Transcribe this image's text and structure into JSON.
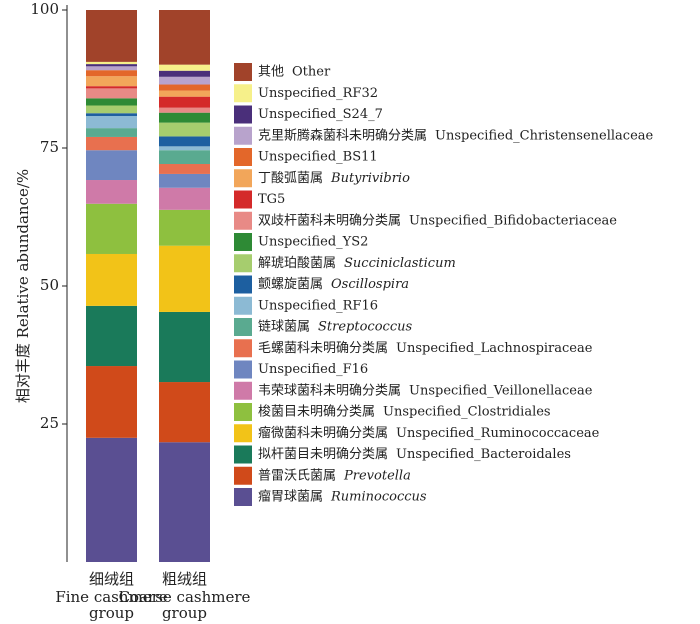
{
  "chart_data": {
    "type": "stacked_bar",
    "y_label": "相对丰度 Relative abundance/%",
    "categories": [
      "细绒组",
      "粗绒组"
    ],
    "category_en": [
      [
        "Fine cashmere",
        "group"
      ],
      [
        "Coarse cashmere",
        "group"
      ]
    ],
    "ylim": [
      0,
      100
    ],
    "yticks": [
      25,
      50,
      75,
      100
    ],
    "series": [
      {
        "name": "瘤胃球菌属",
        "name_en": "Ruminococcus",
        "italic": true,
        "color": "#5a4f92",
        "values": [
          22.5,
          21.7
        ]
      },
      {
        "name": "普雷沃氏菌属",
        "name_en": "Prevotella",
        "italic": true,
        "color": "#d04a1a",
        "values": [
          13.0,
          10.9
        ]
      },
      {
        "name": "拟杆菌目未明确分类属",
        "name_en": "Unspecified_Bacteroidales",
        "italic": false,
        "color": "#1a7a5a",
        "values": [
          10.9,
          12.7
        ]
      },
      {
        "name": "瘤微菌科未明确分类属",
        "name_en": "Unspecified_Ruminococcaceae",
        "italic": false,
        "color": "#f2c318",
        "values": [
          9.4,
          12.0
        ]
      },
      {
        "name": "梭菌目未明确分类属",
        "name_en": "Unspecified_Clostridiales",
        "italic": false,
        "color": "#8ec03f",
        "values": [
          9.1,
          6.5
        ]
      },
      {
        "name": "韦荣球菌科未明确分类属",
        "name_en": "Unspecified_Veillonellaceae",
        "italic": false,
        "color": "#cf7aa8",
        "values": [
          4.3,
          4.0
        ]
      },
      {
        "name": "Unspecified_F16",
        "color": "#6f86c0",
        "values": [
          5.4,
          2.5
        ]
      },
      {
        "name": "毛螺菌科未明确分类属",
        "name_en": "Unspecified_Lachnospiraceae",
        "italic": false,
        "color": "#e8704f",
        "values": [
          2.4,
          1.8
        ]
      },
      {
        "name": "链球菌属",
        "name_en": "Streptococcus",
        "italic": true,
        "color": "#5aaa90",
        "values": [
          1.6,
          2.5
        ]
      },
      {
        "name": "Unspecified_RF16",
        "color": "#8cbad4",
        "values": [
          2.2,
          0.7
        ]
      },
      {
        "name": "颤螺旋菌属",
        "name_en": "Oscillospira",
        "italic": true,
        "color": "#1d5fa0",
        "values": [
          0.5,
          1.8
        ]
      },
      {
        "name": "解琥珀酸菌属",
        "name_en": "Succiniclasticum",
        "italic": true,
        "color": "#a6cd6e",
        "values": [
          1.4,
          2.5
        ]
      },
      {
        "name": "Unspecified_YS2",
        "color": "#2e8a35",
        "values": [
          1.3,
          1.8
        ]
      },
      {
        "name": "双歧杆菌科未明确分类属",
        "name_en": "Unspecified_Bifidobacteriaceae",
        "italic": false,
        "color": "#e88a86",
        "values": [
          1.8,
          0.9
        ]
      },
      {
        "name": "TG5",
        "color": "#d42a2a",
        "values": [
          0.4,
          2.0
        ]
      },
      {
        "name": "丁酸弧菌属",
        "name_en": "Butyrivibrio",
        "italic": true,
        "color": "#f2a65a",
        "values": [
          1.8,
          1.1
        ]
      },
      {
        "name": "Unspecified_BS11",
        "color": "#e3672a",
        "values": [
          1.1,
          1.1
        ]
      },
      {
        "name": "克里斯腾森菌科未明确分类属",
        "name_en": "Unspecified_Christensenellaceae",
        "italic": false,
        "color": "#b8a3cc",
        "values": [
          0.7,
          1.4
        ]
      },
      {
        "name": "Unspecified_S24_7",
        "color": "#4a2f7a",
        "values": [
          0.4,
          1.1
        ]
      },
      {
        "name": "Unspecified_RF32",
        "color": "#f6f08a",
        "values": [
          0.4,
          1.1
        ]
      },
      {
        "name": "其他",
        "name_en": "Other",
        "italic": false,
        "color": "#a1432a",
        "values": [
          9.4,
          9.9
        ]
      }
    ]
  }
}
